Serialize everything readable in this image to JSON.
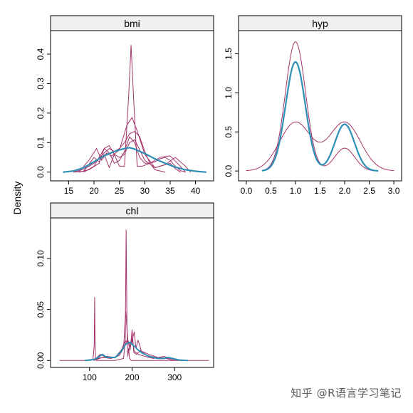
{
  "watermark": "知乎 @R语言学习笔记",
  "colors": {
    "imputed": "#A3336A",
    "observed": "#2E8FB5",
    "strip_fill": "#F0F0F0",
    "axis": "#000000"
  },
  "y_axis_label": "Density",
  "chart_data": [
    {
      "type": "line",
      "panel": "bmi",
      "title": "bmi",
      "xlabel": "",
      "ylabel": "Density",
      "xlim": [
        12,
        43
      ],
      "ylim": [
        -0.02,
        0.47
      ],
      "xticks": [
        15,
        20,
        25,
        30,
        35,
        40
      ],
      "yticks": [
        0.0,
        0.1,
        0.2,
        0.3,
        0.4
      ],
      "yticklabels": [
        "0.0",
        "0.1",
        "0.2",
        "0.3",
        "0.4"
      ],
      "grid": false,
      "series": [
        {
          "role": "observed",
          "color": "#2E8FB5",
          "width": 2.2,
          "x": [
            14,
            16,
            18,
            20,
            22,
            24,
            26,
            27,
            28,
            30,
            32,
            34,
            36,
            38,
            40,
            42
          ],
          "y": [
            0.0,
            0.004,
            0.015,
            0.035,
            0.055,
            0.07,
            0.08,
            0.083,
            0.078,
            0.063,
            0.045,
            0.03,
            0.017,
            0.008,
            0.003,
            0.0
          ]
        },
        {
          "role": "imputed",
          "color": "#A3336A",
          "width": 1,
          "x": [
            16,
            18,
            20,
            21,
            22,
            23,
            24,
            25,
            26,
            26.8,
            27.3,
            27.8,
            28.5,
            29.5,
            31,
            32,
            33,
            34,
            35,
            36,
            37,
            38
          ],
          "y": [
            0.0,
            0.003,
            0.05,
            0.035,
            0.06,
            0.015,
            0.06,
            0.02,
            0.02,
            0.25,
            0.43,
            0.25,
            0.02,
            0.02,
            0.03,
            0.035,
            0.045,
            0.05,
            0.04,
            0.02,
            0.005,
            0.0
          ]
        },
        {
          "role": "imputed",
          "color": "#A3336A",
          "width": 1,
          "x": [
            17,
            19,
            20.5,
            21.5,
            22.5,
            23.5,
            25,
            26.5,
            27.5,
            28.5,
            30,
            32,
            34,
            35,
            36,
            37
          ],
          "y": [
            0.0,
            0.04,
            0.08,
            0.04,
            0.065,
            0.055,
            0.075,
            0.16,
            0.185,
            0.14,
            0.06,
            0.015,
            0.025,
            0.03,
            0.012,
            0.0
          ]
        },
        {
          "role": "imputed",
          "color": "#A3336A",
          "width": 1,
          "x": [
            16,
            18,
            20,
            22,
            23,
            24,
            25,
            26,
            27,
            28,
            29,
            30,
            31,
            32,
            34
          ],
          "y": [
            0.0,
            0.01,
            0.03,
            0.065,
            0.08,
            0.07,
            0.08,
            0.1,
            0.13,
            0.138,
            0.12,
            0.07,
            0.03,
            0.008,
            0.0
          ]
        },
        {
          "role": "imputed",
          "color": "#A3336A",
          "width": 1,
          "x": [
            18,
            20,
            21,
            22,
            23,
            24,
            25,
            26,
            27,
            28,
            29,
            30,
            31,
            33,
            35,
            37,
            38
          ],
          "y": [
            0.0,
            0.02,
            0.05,
            0.08,
            0.065,
            0.03,
            0.04,
            0.07,
            0.12,
            0.1,
            0.05,
            0.03,
            0.03,
            0.05,
            0.055,
            0.02,
            0.0
          ]
        },
        {
          "role": "imputed",
          "color": "#A3336A",
          "width": 1,
          "x": [
            17,
            19,
            21,
            22,
            23,
            24,
            25,
            26,
            27,
            28,
            29,
            30,
            32,
            34,
            36,
            38,
            39
          ],
          "y": [
            0.0,
            0.008,
            0.03,
            0.08,
            0.09,
            0.06,
            0.05,
            0.06,
            0.1,
            0.11,
            0.075,
            0.04,
            0.015,
            0.025,
            0.05,
            0.02,
            0.0
          ]
        }
      ]
    },
    {
      "type": "line",
      "panel": "hyp",
      "title": "hyp",
      "xlabel": "",
      "ylabel": "Density",
      "xlim": [
        -0.1,
        3.1
      ],
      "ylim": [
        -0.09,
        1.76
      ],
      "xticks": [
        0.0,
        0.5,
        1.0,
        1.5,
        2.0,
        2.5,
        3.0
      ],
      "xticklabels": [
        "0.0",
        "0.5",
        "1.0",
        "1.5",
        "2.0",
        "2.5",
        "3.0"
      ],
      "yticks": [
        0.0,
        0.5,
        1.0,
        1.5
      ],
      "yticklabels": [
        "0.0",
        "0.5",
        "1.0",
        "1.5"
      ],
      "grid": false,
      "series": [
        {
          "role": "observed",
          "color": "#2E8FB5",
          "width": 2.2,
          "mixture": {
            "weights": [
              0.7,
              0.3
            ],
            "means": [
              1.0,
              2.0
            ],
            "sd": 0.2
          },
          "x_range": [
            0.33,
            2.67
          ]
        },
        {
          "role": "imputed",
          "color": "#A3336A",
          "width": 1,
          "mixture": {
            "weights": [
              0.85,
              0.15
            ],
            "means": [
              1.0,
              2.0
            ],
            "sd": 0.205
          },
          "x_range": [
            0.33,
            2.67
          ]
        },
        {
          "role": "imputed",
          "color": "#A3336A",
          "width": 1,
          "mixture": {
            "weights": [
              0.5,
              0.5
            ],
            "means": [
              1.0,
              2.0
            ],
            "sd": 0.32
          },
          "x_range": [
            0.0,
            3.0
          ]
        }
      ]
    },
    {
      "type": "line",
      "panel": "chl",
      "title": "chl",
      "xlabel": "",
      "ylabel": "Density",
      "xlim": [
        15,
        385
      ],
      "ylim": [
        -0.004,
        0.137
      ],
      "xticks": [
        100,
        200,
        300
      ],
      "yticks": [
        0.0,
        0.05,
        0.1
      ],
      "yticklabels": [
        "0.00",
        "0.05",
        "0.10"
      ],
      "grid": false,
      "series": [
        {
          "role": "observed",
          "color": "#2E8FB5",
          "width": 2.0,
          "x": [
            90,
            110,
            120,
            130,
            140,
            160,
            175,
            185,
            195,
            205,
            215,
            225,
            240,
            260,
            275,
            285,
            295,
            310,
            330
          ],
          "y": [
            0.0,
            0.001,
            0.003,
            0.006,
            0.003,
            0.003,
            0.009,
            0.016,
            0.018,
            0.014,
            0.01,
            0.007,
            0.004,
            0.002,
            0.002,
            0.003,
            0.002,
            0.0005,
            0.0
          ]
        },
        {
          "role": "imputed",
          "color": "#A3336A",
          "width": 1,
          "x": [
            30,
            100,
            108,
            111,
            112,
            113,
            114,
            116,
            120,
            160,
            180,
            184,
            186,
            188,
            190,
            192,
            194,
            198,
            230,
            300,
            380
          ],
          "y": [
            0.0,
            0.0,
            0.001,
            0.015,
            0.062,
            0.015,
            0.002,
            0.0,
            0.0,
            0.0,
            0.002,
            0.02,
            0.128,
            0.03,
            0.004,
            0.012,
            0.002,
            0.0,
            0.0,
            0.0,
            0.0
          ]
        },
        {
          "role": "imputed",
          "color": "#A3336A",
          "width": 1,
          "x": [
            100,
            115,
            125,
            135,
            150,
            170,
            180,
            185,
            190,
            195,
            200,
            205,
            215,
            230,
            250,
            275,
            290,
            310
          ],
          "y": [
            0.0,
            0.002,
            0.006,
            0.004,
            0.002,
            0.005,
            0.012,
            0.048,
            0.02,
            0.01,
            0.022,
            0.009,
            0.006,
            0.004,
            0.002,
            0.004,
            0.002,
            0.0
          ]
        },
        {
          "role": "imputed",
          "color": "#A3336A",
          "width": 1,
          "x": [
            110,
            130,
            150,
            165,
            175,
            182,
            190,
            196,
            200,
            204,
            210,
            220,
            235,
            255,
            280,
            300
          ],
          "y": [
            0.0,
            0.003,
            0.002,
            0.004,
            0.01,
            0.018,
            0.02,
            0.013,
            0.03,
            0.008,
            0.006,
            0.01,
            0.005,
            0.003,
            0.002,
            0.0
          ]
        },
        {
          "role": "imputed",
          "color": "#A3336A",
          "width": 1,
          "x": [
            100,
            120,
            140,
            160,
            178,
            188,
            198,
            205,
            209,
            214,
            222,
            240,
            260,
            290,
            320
          ],
          "y": [
            0.0,
            0.002,
            0.004,
            0.003,
            0.012,
            0.019,
            0.016,
            0.028,
            0.012,
            0.02,
            0.009,
            0.006,
            0.003,
            0.002,
            0.0
          ]
        }
      ]
    }
  ]
}
